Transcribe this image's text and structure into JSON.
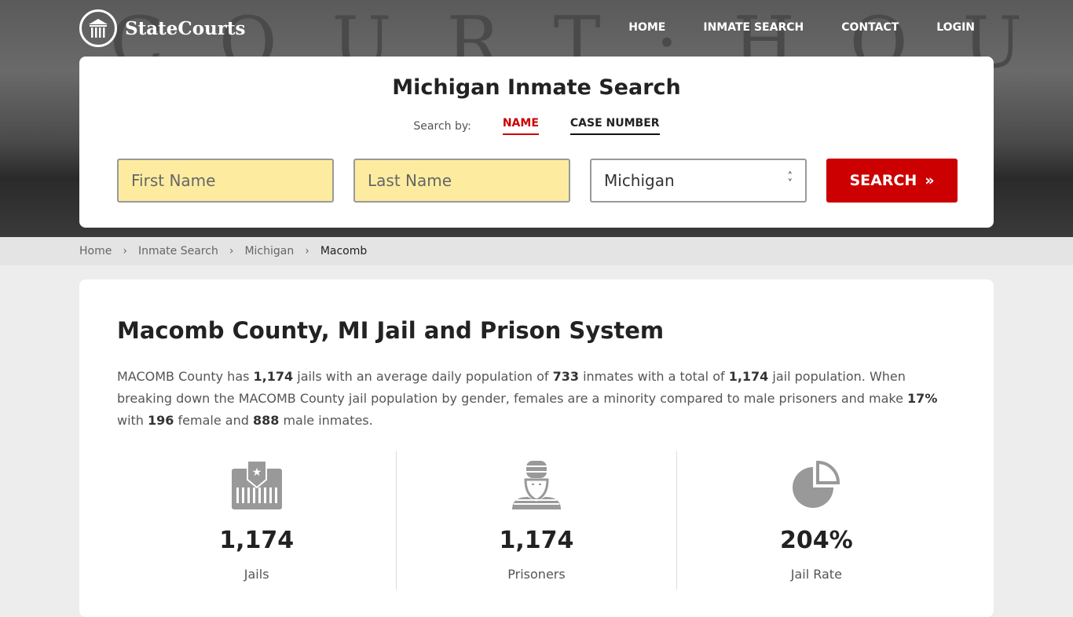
{
  "brand": {
    "name": "StateCourts",
    "hero_text": "COURT·HOUSE"
  },
  "nav": [
    "HOME",
    "INMATE SEARCH",
    "CONTACT",
    "LOGIN"
  ],
  "search": {
    "title": "Michigan Inmate Search",
    "search_by": "Search by:",
    "tabs": [
      "NAME",
      "CASE NUMBER"
    ],
    "active_tab": "NAME",
    "first_placeholder": "First Name",
    "last_placeholder": "Last Name",
    "state": "Michigan",
    "button": "SEARCH"
  },
  "breadcrumb": [
    "Home",
    "Inmate Search",
    "Michigan",
    "Macomb"
  ],
  "main": {
    "title": "Macomb County, MI Jail and Prison System",
    "p": [
      "MACOMB County has ",
      "1,174",
      " jails with an average daily population of ",
      "733",
      " inmates with a total of ",
      "1,174",
      " jail population. When breaking down the MACOMB County jail population by gender, females are a minority compared to male prisoners and make ",
      "17%",
      " with ",
      "196",
      " female and ",
      "888",
      " male inmates."
    ],
    "stats": [
      {
        "value": "1,174",
        "label": "Jails",
        "icon": "jail-icon"
      },
      {
        "value": "1,174",
        "label": "Prisoners",
        "icon": "prisoner-icon"
      },
      {
        "value": "204%",
        "label": "Jail Rate",
        "icon": "pie-chart-icon"
      }
    ]
  },
  "colors": {
    "accent": "#cc0000",
    "input_bg": "#fdeca0"
  }
}
